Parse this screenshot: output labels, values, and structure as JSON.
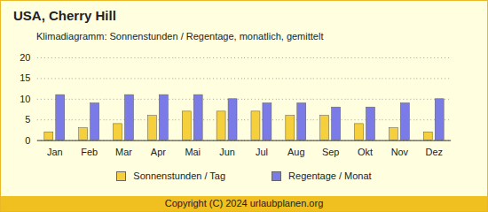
{
  "chart_data": {
    "type": "bar",
    "title": "USA, Cherry Hill",
    "subtitle": "Klimadiagramm: Sonnenstunden / Regentage, monatlich, gemittelt",
    "caption": "Copyright (C) 2024 urlaubplanen.org",
    "categories": [
      "Jan",
      "Feb",
      "Mar",
      "Apr",
      "Mai",
      "Jun",
      "Jul",
      "Aug",
      "Sep",
      "Okt",
      "Nov",
      "Dez"
    ],
    "series": [
      {
        "name": "Sonnenstunden / Tag",
        "color": "#f6cf3c",
        "values": [
          2,
          3,
          4,
          6,
          7,
          7,
          7,
          6,
          6,
          4,
          3,
          2
        ]
      },
      {
        "name": "Regentage / Monat",
        "color": "#7b7be8",
        "values": [
          11,
          9,
          11,
          11,
          11,
          10,
          9,
          9,
          8,
          8,
          9,
          10
        ]
      }
    ],
    "ylim": [
      0,
      20
    ],
    "yticks": [
      0,
      5,
      10,
      15,
      20
    ],
    "grid": true,
    "legend": "bottom"
  }
}
